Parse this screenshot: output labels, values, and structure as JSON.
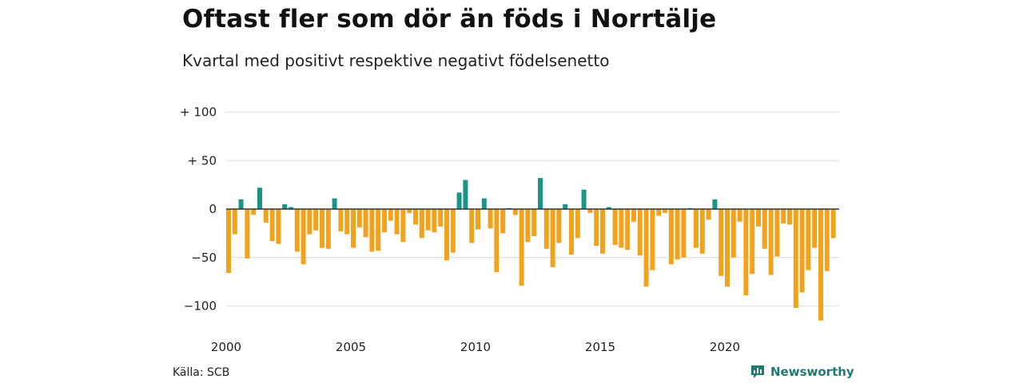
{
  "header": {
    "title": "Oftast fler som dör än föds i Norrtälje",
    "subtitle": "Kvartal med positivt respektive negativt födelsenetto"
  },
  "footer": {
    "source": "Källa: SCB",
    "brand": "Newsworthy",
    "brand_icon": "bar-chart-logo-icon"
  },
  "colors": {
    "positive": "#1a9486",
    "negative": "#f2a31d",
    "grid": "#e3e3e3",
    "brand": "#1f7a73"
  },
  "chart_data": {
    "type": "bar",
    "x_start": "2000 Q1",
    "frequency": "quarterly",
    "ylim": [
      -125,
      110
    ],
    "yticks": [
      {
        "value": 100,
        "label": "+ 100"
      },
      {
        "value": 50,
        "label": "+  50"
      },
      {
        "value": 0,
        "label": "0"
      },
      {
        "value": -50,
        "label": "−50"
      },
      {
        "value": -100,
        "label": "−100"
      }
    ],
    "xticks": [
      {
        "year": 2000,
        "label": "2000"
      },
      {
        "year": 2005,
        "label": "2005"
      },
      {
        "year": 2010,
        "label": "2010"
      },
      {
        "year": 2015,
        "label": "2015"
      },
      {
        "year": 2020,
        "label": "2020"
      }
    ],
    "values": [
      -66,
      -26,
      10,
      -51,
      -6,
      22,
      -14,
      -33,
      -36,
      5,
      2,
      -44,
      -57,
      -26,
      -22,
      -40,
      -41,
      11,
      -23,
      -26,
      -40,
      -19,
      -29,
      -44,
      -43,
      -24,
      -12,
      -26,
      -34,
      -4,
      -16,
      -30,
      -22,
      -24,
      -18,
      -53,
      -45,
      17,
      30,
      -35,
      -21,
      11,
      -20,
      -65,
      -25,
      1,
      -6,
      -79,
      -34,
      -28,
      32,
      -41,
      -60,
      -35,
      5,
      -47,
      -30,
      20,
      -4,
      -38,
      -46,
      2,
      -37,
      -40,
      -42,
      -13,
      -48,
      -80,
      -63,
      -7,
      -4,
      -57,
      -52,
      -50,
      1,
      -40,
      -46,
      -11,
      10,
      -69,
      -80,
      -50,
      -13,
      -89,
      -67,
      -18,
      -41,
      -68,
      -49,
      -15,
      -16,
      -102,
      -86,
      -63,
      -40,
      -115,
      -64,
      -30
    ],
    "grid": true,
    "legend": "none"
  }
}
